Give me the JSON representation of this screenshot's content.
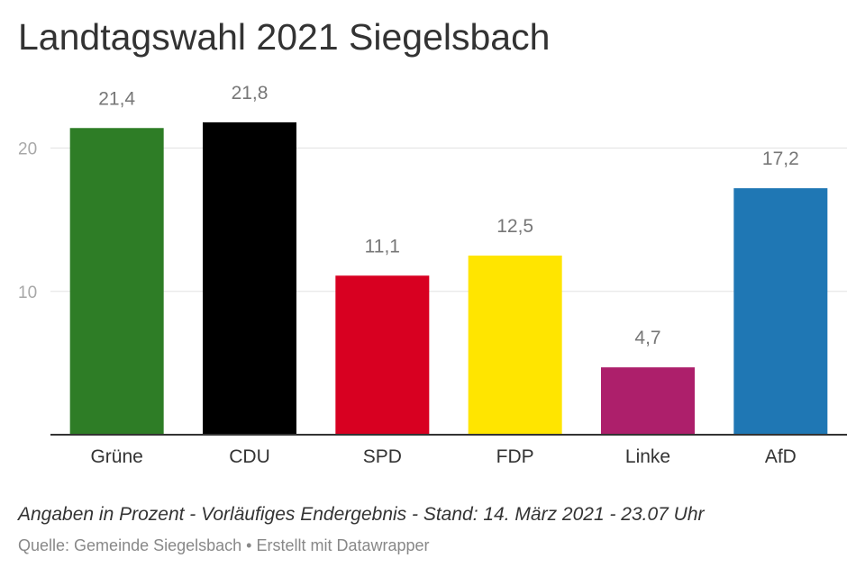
{
  "title": "Landtagswahl 2021 Siegelsbach",
  "note": "Angaben in Prozent - Vorläufiges Endergebnis - Stand: 14. März 2021 - 23.07 Uhr",
  "source": {
    "prefix": "Quelle: ",
    "name": "Gemeinde Siegelsbach",
    "separator": " • ",
    "created_with": "Erstellt mit Datawrapper"
  },
  "chart_data": {
    "type": "bar",
    "categories": [
      "Grüne",
      "CDU",
      "SPD",
      "FDP",
      "Linke",
      "AfD"
    ],
    "values": [
      21.4,
      21.8,
      11.1,
      12.5,
      4.7,
      17.2
    ],
    "value_labels": [
      "21,4",
      "21,8",
      "11,1",
      "12,5",
      "4,7",
      "17,2"
    ],
    "colors": [
      "#2e7d26",
      "#000000",
      "#d80021",
      "#ffe500",
      "#ad1f6b",
      "#1f77b4"
    ],
    "yticks": [
      10,
      20
    ],
    "ylim": [
      0,
      23.3
    ],
    "grid": true,
    "xlabel": "",
    "ylabel": ""
  }
}
